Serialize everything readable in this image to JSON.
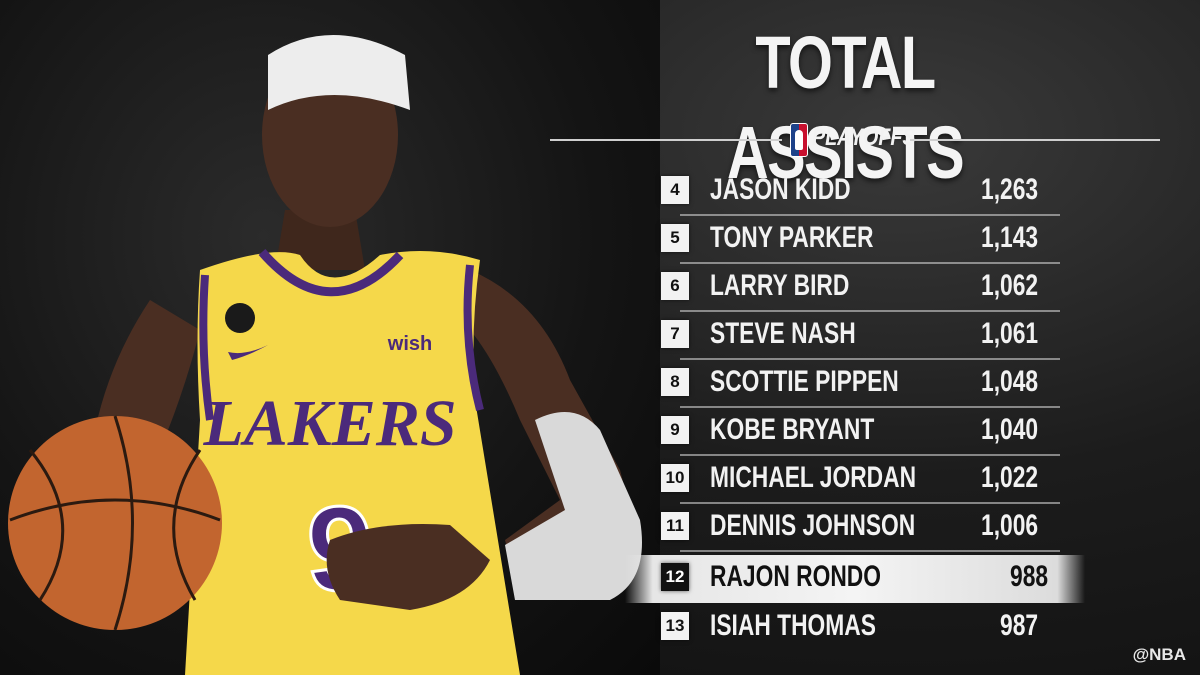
{
  "graphic": {
    "title": "TOTAL ASSISTS",
    "subtitle": "PLAYOFFS",
    "logo_icon": "nba-logo-icon",
    "social_handle": "@NBA"
  },
  "player_photo": {
    "jersey_text": "LAKERS",
    "jersey_number": "9",
    "sponsor": "wish",
    "jersey_color": "#f5d84a",
    "jersey_trim": "#4b2a7b"
  },
  "leaderboard": [
    {
      "rank": "4",
      "name": "JASON KIDD",
      "value": "1,263"
    },
    {
      "rank": "5",
      "name": "TONY PARKER",
      "value": "1,143"
    },
    {
      "rank": "6",
      "name": "LARRY BIRD",
      "value": "1,062"
    },
    {
      "rank": "7",
      "name": "STEVE NASH",
      "value": "1,061"
    },
    {
      "rank": "8",
      "name": "SCOTTIE PIPPEN",
      "value": "1,048"
    },
    {
      "rank": "9",
      "name": "KOBE BRYANT",
      "value": "1,040"
    },
    {
      "rank": "10",
      "name": "MICHAEL JORDAN",
      "value": "1,022"
    },
    {
      "rank": "11",
      "name": "DENNIS JOHNSON",
      "value": "1,006"
    },
    {
      "rank": "12",
      "name": "RAJON RONDO",
      "value": "988",
      "highlighted": true
    },
    {
      "rank": "13",
      "name": "ISIAH THOMAS",
      "value": "987"
    }
  ],
  "colors": {
    "background": "#1c1c1c",
    "text": "#f2f2f2",
    "highlight_bg": "#f4f4f4",
    "highlight_text": "#111111"
  }
}
